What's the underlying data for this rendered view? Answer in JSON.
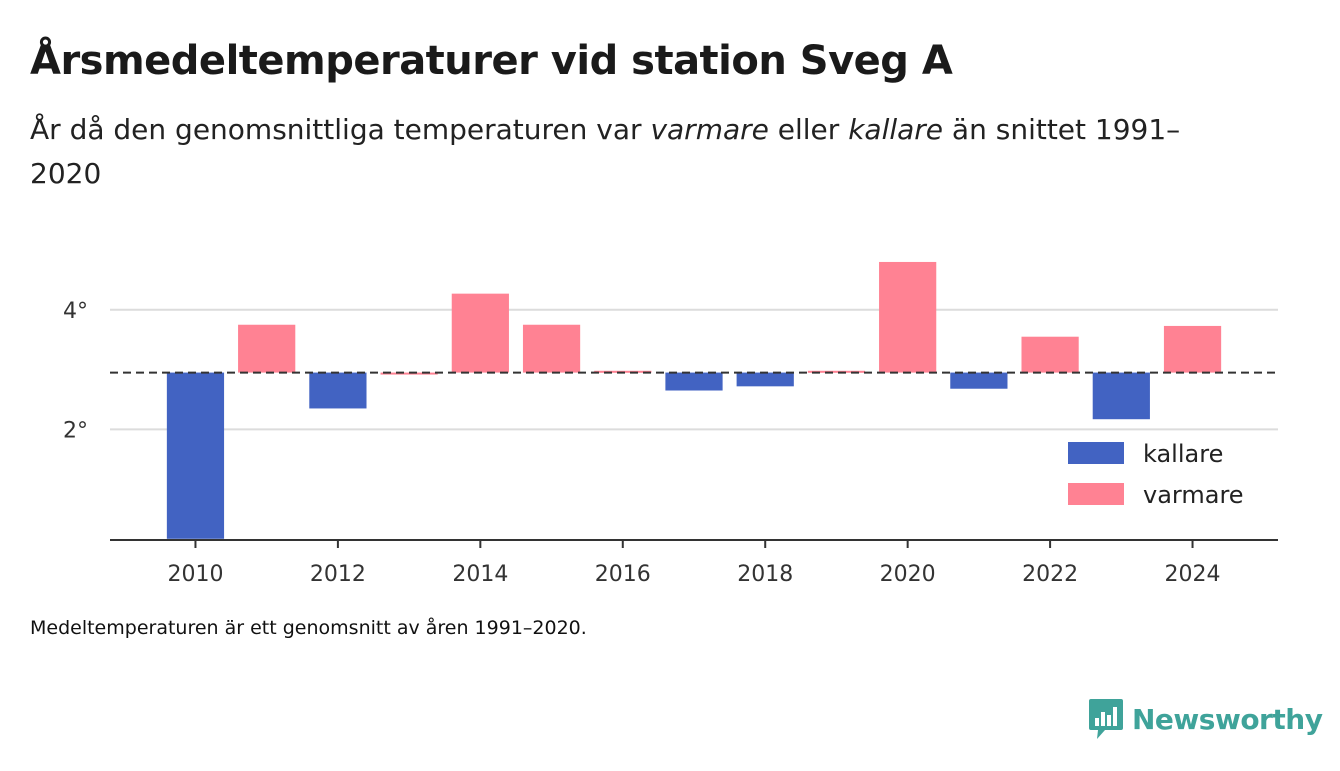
{
  "title": "Årsmedeltemperaturer vid station Sveg A",
  "subtitle": {
    "part1": "År då den genomsnittliga temperaturen var ",
    "warm_word": "varmare",
    "part2": " eller ",
    "cold_word": "kallare",
    "part3": " än snittet 1991–2020"
  },
  "footnote": "Medeltemperaturen är ett genomsnitt av åren 1991–2020.",
  "brand": {
    "name": "Newsworthy",
    "icon": "newsworthy-logo-icon",
    "color": "#3fa39a"
  },
  "chart_data": {
    "type": "bar",
    "baseline": 2.95,
    "ylim": [
      0.15,
      5.0
    ],
    "xlim": [
      2008.8,
      2025.2
    ],
    "yticks": [
      2,
      4
    ],
    "ytick_format": "°",
    "xticks": [
      2010,
      2012,
      2014,
      2016,
      2018,
      2020,
      2022,
      2024
    ],
    "grid": true,
    "legend_position": "bottom-right",
    "colors": {
      "kallare": "#4263c2",
      "varmare": "#ff8293"
    },
    "legend": [
      {
        "key": "kallare",
        "label": "kallare"
      },
      {
        "key": "varmare",
        "label": "varmare"
      }
    ],
    "x": [
      2010,
      2011,
      2012,
      2013,
      2014,
      2015,
      2016,
      2017,
      2018,
      2019,
      2020,
      2021,
      2022,
      2023,
      2024
    ],
    "values": [
      0.17,
      3.75,
      2.35,
      2.95,
      4.27,
      3.75,
      2.98,
      2.65,
      2.72,
      2.98,
      4.8,
      2.68,
      3.55,
      2.17,
      3.73
    ]
  }
}
